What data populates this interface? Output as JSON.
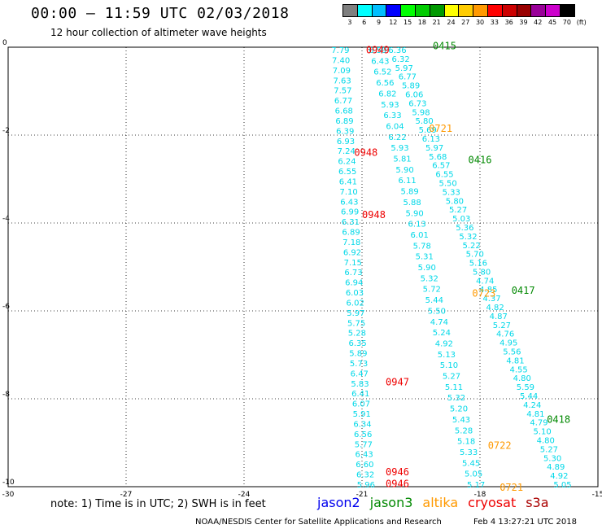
{
  "header": {
    "title": "00:00 – 11:59 UTC 02/03/2018",
    "subtitle": "12 hour collection of altimeter wave heights"
  },
  "colorbar": {
    "labels": [
      "3",
      "6",
      "9",
      "12",
      "15",
      "18",
      "21",
      "24",
      "27",
      "30",
      "33",
      "36",
      "39",
      "42",
      "45",
      "70"
    ],
    "colors": [
      "#7f7f7f",
      "#00ffff",
      "#00bfff",
      "#0000ff",
      "#00ff00",
      "#00cc00",
      "#009900",
      "#ffff00",
      "#ffcc00",
      "#ff9900",
      "#ff0000",
      "#cc0000",
      "#990000",
      "#990099",
      "#cc00cc",
      "#000000"
    ],
    "unit": "(ft)"
  },
  "map": {
    "lon_ticks": [
      "-30",
      "-27",
      "-24",
      "-21",
      "-18",
      "-15"
    ],
    "lat_ticks": [
      "0",
      "-2",
      "-4",
      "-6",
      "-8",
      "-10"
    ],
    "lon_range": [
      -30,
      -15
    ],
    "lat_range": [
      -10,
      0
    ]
  },
  "tracks": [
    {
      "satellite": "cryosat",
      "color": "#00d8e8",
      "lon_start": -21.55,
      "lon_end": -20.9,
      "values": [
        "7.79",
        "7.40",
        "7.09",
        "7.63",
        "7.57",
        "6.77",
        "6.68",
        "6.89",
        "6.39",
        "6.93",
        "7.24",
        "6.24",
        "6.55",
        "6.41",
        "7.10",
        "6.43",
        "6.99",
        "6.31",
        "6.89",
        "7.18",
        "6.92",
        "7.15",
        "6.73",
        "6.94",
        "6.03",
        "6.02",
        "5.97",
        "5.75",
        "5.28",
        "6.35",
        "5.89",
        "5.73",
        "6.47",
        "5.83",
        "6.41",
        "6.07",
        "5.91",
        "6.34",
        "6.56",
        "5.77",
        "6.43",
        "6.60",
        "6.32",
        "5.96"
      ]
    },
    {
      "satellite": "altika",
      "color": "#00d8e8",
      "lon_start": -20.6,
      "lon_end": -18.1,
      "values": [
        "6.59",
        "6.43",
        "6.52",
        "6.56",
        "6.82",
        "5.93",
        "6.33",
        "6.04",
        "6.22",
        "5.93",
        "5.81",
        "5.90",
        "6.11",
        "5.89",
        "5.88",
        "5.90",
        "6.13",
        "6.01",
        "5.78",
        "5.31",
        "5.90",
        "5.32",
        "5.72",
        "5.44",
        "5.50",
        "4.74",
        "5.24",
        "4.92",
        "5.13",
        "5.10",
        "5.27",
        "5.11",
        "5.32",
        "5.20",
        "5.43",
        "5.28",
        "5.18",
        "5.33",
        "5.45",
        "5.05",
        "5.17"
      ]
    },
    {
      "satellite": "jason3",
      "color": "#00d8e8",
      "lon_start": -20.1,
      "lon_end": -15.9,
      "values": [
        "6.36",
        "6.32",
        "5.97",
        "6.77",
        "5.89",
        "6.06",
        "6.73",
        "5.98",
        "5.80",
        "5.69",
        "6.13",
        "5.97",
        "5.68",
        "6.57",
        "6.55",
        "5.50",
        "5.33",
        "5.80",
        "5.27",
        "5.03",
        "5.36",
        "5.32",
        "5.22",
        "5.70",
        "5.16",
        "5.80",
        "4.74",
        "4.85",
        "4.37",
        "4.82",
        "4.87",
        "5.27",
        "4.76",
        "4.95",
        "5.56",
        "4.81",
        "4.55",
        "4.80",
        "5.59",
        "5.44",
        "4.24",
        "4.81",
        "4.79",
        "5.10",
        "4.80",
        "5.27",
        "5.30",
        "4.89",
        "4.92",
        "5.05"
      ]
    }
  ],
  "time_labels": [
    {
      "text": "0949",
      "color": "#ee0000",
      "lon": -20.6,
      "lat": -0.05
    },
    {
      "text": "0415",
      "color": "#008800",
      "lon": -18.9,
      "lat": 0.05
    },
    {
      "text": "0721",
      "color": "#ff9900",
      "lon": -19.0,
      "lat": -1.83
    },
    {
      "text": "0948",
      "color": "#ee0000",
      "lon": -20.9,
      "lat": -2.38
    },
    {
      "text": "0416",
      "color": "#008800",
      "lon": -18.0,
      "lat": -2.55
    },
    {
      "text": "0948",
      "color": "#ee0000",
      "lon": -20.7,
      "lat": -3.8
    },
    {
      "text": "0723",
      "color": "#ff9900",
      "lon": -17.9,
      "lat": -5.58
    },
    {
      "text": "0417",
      "color": "#008800",
      "lon": -16.9,
      "lat": -5.52
    },
    {
      "text": "0947",
      "color": "#ee0000",
      "lon": -20.1,
      "lat": -7.6
    },
    {
      "text": "0418",
      "color": "#008800",
      "lon": -16.0,
      "lat": -8.45
    },
    {
      "text": "0722",
      "color": "#ff9900",
      "lon": -17.5,
      "lat": -9.05
    },
    {
      "text": "0946",
      "color": "#ee0000",
      "lon": -20.1,
      "lat": -9.65
    },
    {
      "text": "0946",
      "color": "#ee0000",
      "lon": -20.1,
      "lat": -9.92
    },
    {
      "text": "0721",
      "color": "#ff9900",
      "lon": -17.2,
      "lat": -10.0
    }
  ],
  "footer": {
    "note": "note:  1) Time is in UTC;  2) SWH is in feet",
    "satellites": [
      {
        "name": "jason2",
        "color": "#0000ee"
      },
      {
        "name": "jason3",
        "color": "#008800"
      },
      {
        "name": "altika",
        "color": "#ff9900"
      },
      {
        "name": "cryosat",
        "color": "#ee0000"
      },
      {
        "name": "s3a",
        "color": "#aa0000"
      }
    ],
    "credit": "NOAA/NESDIS Center for Satellite Applications and Research",
    "timestamp": "Feb  4 13:27:21 UTC 2018"
  }
}
